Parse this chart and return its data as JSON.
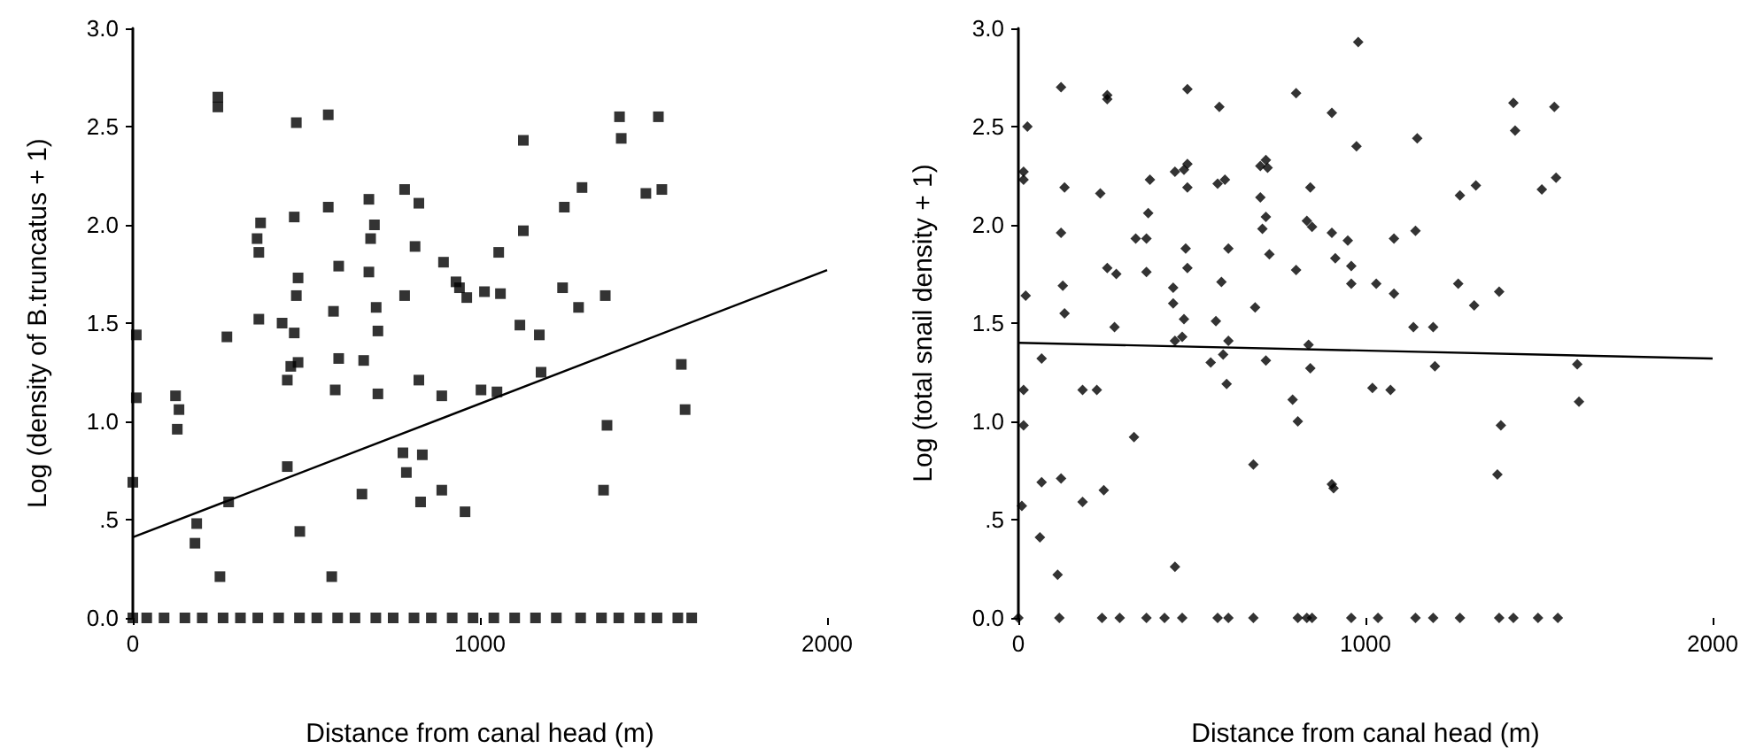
{
  "chart_data": [
    {
      "type": "scatter",
      "xlabel": "Distance from canal head (m)",
      "ylabel": "Log (density of B.truncatus + 1)",
      "xlim": [
        0,
        2000
      ],
      "ylim": [
        0,
        3
      ],
      "xticks": [
        0,
        1000,
        2000
      ],
      "yticks": [
        {
          "value": 0,
          "label": "0.0"
        },
        {
          "value": 0.5,
          "label": ".5"
        },
        {
          "value": 1,
          "label": "1.0"
        },
        {
          "value": 1.5,
          "label": "1.5"
        },
        {
          "value": 2,
          "label": "2.0"
        },
        {
          "value": 2.5,
          "label": "2.5"
        },
        {
          "value": 3,
          "label": "3.0"
        }
      ],
      "grid": false,
      "marker": "square",
      "series": [
        {
          "color": "#000000",
          "x": [
            245,
            245,
            471,
            563,
            1125,
            1402,
            1407,
            1514,
            1478,
            1524,
            1294,
            1243,
            1125,
            783,
            824,
            680,
            696,
            685,
            563,
            465,
            368,
            358,
            363,
            813,
            593,
            680,
            476,
            895,
            1054,
            931,
            941,
            1013,
            1059,
            962,
            1238,
            1284,
            1361,
            471,
            701,
            783,
            578,
            10,
            271,
            363,
            430,
            465,
            706,
            593,
            665,
            455,
            476,
            445,
            583,
            706,
            824,
            890,
            1003,
            1049,
            1115,
            1171,
            1176,
            1580,
            1591,
            1366,
            1356,
            10,
            123,
            133,
            128,
            0,
            445,
            778,
            834,
            788,
            890,
            829,
            957,
            660,
            276,
            184,
            179,
            481,
            251,
            573,
            0,
            40,
            90,
            150,
            200,
            260,
            310,
            360,
            420,
            480,
            530,
            590,
            640,
            700,
            750,
            810,
            860,
            920,
            980,
            1040,
            1100,
            1160,
            1220,
            1290,
            1350,
            1400,
            1460,
            1510,
            1570,
            1610
          ],
          "values": [
            2.65,
            2.6,
            2.52,
            2.56,
            2.43,
            2.55,
            2.44,
            2.55,
            2.16,
            2.18,
            2.19,
            2.09,
            1.97,
            2.18,
            2.11,
            2.13,
            2.0,
            1.93,
            2.09,
            2.04,
            2.01,
            1.93,
            1.86,
            1.89,
            1.79,
            1.76,
            1.73,
            1.81,
            1.86,
            1.71,
            1.68,
            1.66,
            1.65,
            1.63,
            1.68,
            1.58,
            1.64,
            1.64,
            1.58,
            1.64,
            1.56,
            1.44,
            1.43,
            1.52,
            1.5,
            1.45,
            1.46,
            1.32,
            1.31,
            1.28,
            1.3,
            1.21,
            1.16,
            1.14,
            1.21,
            1.13,
            1.16,
            1.15,
            1.49,
            1.44,
            1.25,
            1.29,
            1.06,
            0.98,
            0.65,
            1.12,
            1.13,
            1.06,
            0.96,
            0.69,
            0.77,
            0.84,
            0.83,
            0.74,
            0.65,
            0.59,
            0.54,
            0.63,
            0.59,
            0.48,
            0.38,
            0.44,
            0.21,
            0.21,
            0,
            0,
            0,
            0,
            0,
            0,
            0,
            0,
            0,
            0,
            0,
            0,
            0,
            0,
            0,
            0,
            0,
            0,
            0,
            0,
            0,
            0,
            0,
            0,
            0,
            0,
            0,
            0,
            0,
            0
          ]
        },
        {
          "type": "line",
          "color": "#000000",
          "marker": "none",
          "x": [
            0,
            2000
          ],
          "values": [
            0.41,
            1.77
          ]
        }
      ]
    },
    {
      "type": "scatter",
      "xlabel": "Distance from canal head (m)",
      "ylabel": "Log (total snail density + 1)",
      "xlim": [
        0,
        2000
      ],
      "ylim": [
        0,
        3
      ],
      "xticks": [
        0,
        1000,
        2000
      ],
      "yticks": [
        {
          "value": 0,
          "label": "0.0"
        },
        {
          "value": 0.5,
          "label": ".5"
        },
        {
          "value": 1,
          "label": "1.0"
        },
        {
          "value": 1.5,
          "label": "1.5"
        },
        {
          "value": 2,
          "label": "2.0"
        },
        {
          "value": 2.5,
          "label": "2.5"
        },
        {
          "value": 3,
          "label": "3.0"
        }
      ],
      "grid": false,
      "marker": "diamond",
      "series": [
        {
          "color": "#000000",
          "x": [
            979,
            123,
            256,
            256,
            487,
            579,
            800,
            903,
            974,
            1149,
            1426,
            1544,
            1431,
            1549,
            1508,
            1318,
            1272,
            26,
            15,
            15,
            133,
            236,
            379,
            451,
            477,
            487,
            487,
            574,
            595,
            697,
            713,
            718,
            697,
            841,
            374,
            713,
            703,
            831,
            846,
            903,
            949,
            1082,
            1144,
            123,
            338,
            369,
            482,
            605,
            723,
            913,
            959,
            256,
            282,
            369,
            487,
            800,
            959,
            1031,
            1082,
            1267,
            1385,
            1313,
            585,
            446,
            446,
            682,
            128,
            21,
            133,
            277,
            451,
            472,
            477,
            569,
            605,
            590,
            554,
            600,
            713,
            836,
            841,
            790,
            805,
            1138,
            1195,
            1200,
            1020,
            1072,
            67,
            15,
            15,
            185,
            226,
            333,
            677,
            903,
            908,
            1390,
            1380,
            1610,
            1615,
            67,
            123,
            185,
            246,
            10,
            62,
            113,
            451,
            0,
            118,
            241,
            292,
            369,
            421,
            472,
            574,
            605,
            677,
            805,
            831,
            846,
            959,
            1036,
            1144,
            1195,
            1272,
            1385,
            1426,
            1497,
            1554
          ],
          "values": [
            2.93,
            2.7,
            2.66,
            2.64,
            2.69,
            2.6,
            2.67,
            2.57,
            2.4,
            2.44,
            2.62,
            2.6,
            2.48,
            2.24,
            2.18,
            2.2,
            2.15,
            2.5,
            2.27,
            2.23,
            2.19,
            2.16,
            2.23,
            2.27,
            2.28,
            2.31,
            2.19,
            2.21,
            2.23,
            2.3,
            2.33,
            2.29,
            2.14,
            2.19,
            2.06,
            2.04,
            1.98,
            2.02,
            1.99,
            1.96,
            1.92,
            1.93,
            1.97,
            1.96,
            1.93,
            1.93,
            1.88,
            1.88,
            1.85,
            1.83,
            1.79,
            1.78,
            1.75,
            1.76,
            1.78,
            1.77,
            1.7,
            1.7,
            1.65,
            1.7,
            1.66,
            1.59,
            1.71,
            1.68,
            1.6,
            1.58,
            1.69,
            1.64,
            1.55,
            1.48,
            1.41,
            1.43,
            1.52,
            1.51,
            1.41,
            1.34,
            1.3,
            1.19,
            1.31,
            1.39,
            1.27,
            1.11,
            1.0,
            1.48,
            1.48,
            1.28,
            1.17,
            1.16,
            1.32,
            1.16,
            0.98,
            1.16,
            1.16,
            0.92,
            0.78,
            0.68,
            0.66,
            0.98,
            0.73,
            1.29,
            1.1,
            0.69,
            0.71,
            0.59,
            0.65,
            0.57,
            0.41,
            0.22,
            0.26,
            0,
            0,
            0,
            0,
            0,
            0,
            0,
            0,
            0,
            0,
            0,
            0,
            0,
            0,
            0,
            0,
            0,
            0,
            0,
            0,
            0,
            0
          ]
        },
        {
          "type": "line",
          "color": "#000000",
          "marker": "none",
          "x": [
            0,
            2000
          ],
          "values": [
            1.4,
            1.32
          ]
        }
      ]
    }
  ]
}
